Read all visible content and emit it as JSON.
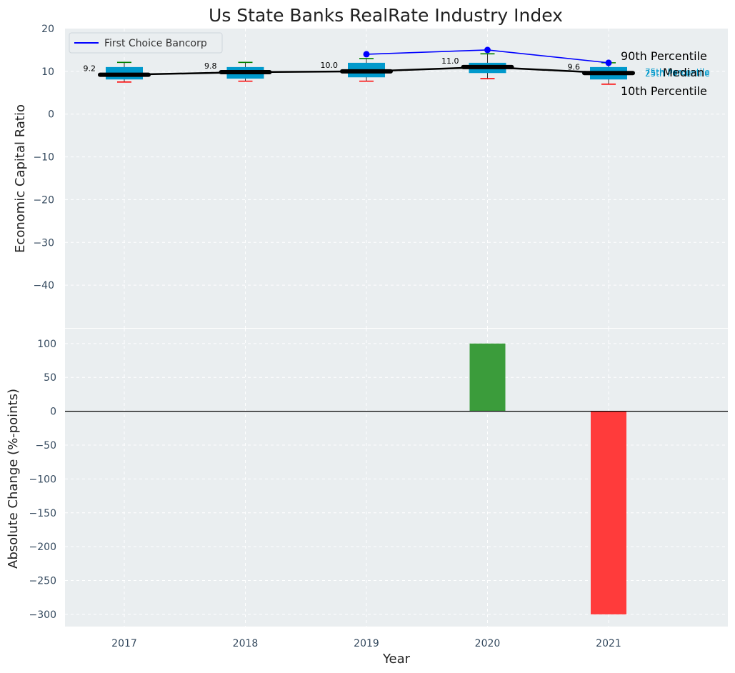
{
  "chart_data": [
    {
      "type": "box",
      "title": "Us State Banks RealRate Industry Index",
      "ylabel": "Economic Capital Ratio",
      "ylim": [
        -50,
        20
      ],
      "yticks": [
        20,
        10,
        0,
        -10,
        -20,
        -30,
        -40
      ],
      "grid": true,
      "categories": [
        "2017",
        "2018",
        "2019",
        "2020",
        "2021"
      ],
      "percentiles": {
        "p10": [
          7.5,
          7.7,
          7.7,
          8.3,
          7.0
        ],
        "p25": [
          8.1,
          8.3,
          8.6,
          9.6,
          8.1
        ],
        "median": [
          9.2,
          9.8,
          10.0,
          11.0,
          9.6
        ],
        "p75": [
          11.0,
          11.0,
          12.0,
          12.0,
          11.0
        ],
        "p90": [
          12.1,
          12.1,
          13.0,
          14.1,
          12.0
        ]
      },
      "median_labels": [
        "9.2",
        "9.8",
        "10.0",
        "11.0",
        "9.6"
      ],
      "series": [
        {
          "name": "First Choice Bancorp",
          "x": [
            "2019",
            "2020",
            "2021"
          ],
          "values": [
            14.0,
            15.0,
            12.0
          ],
          "color": "#0000ff"
        }
      ],
      "legend": {
        "position": "top-left",
        "entries": [
          "First Choice Bancorp"
        ]
      },
      "annotations": {
        "p90": "90th Percentile",
        "p75": "75th Percentile",
        "median": "Median",
        "p25": "25th Percentile",
        "p10": "10th Percentile"
      }
    },
    {
      "type": "bar",
      "ylabel": "Absolute Change (%-points)",
      "xlabel": "Year",
      "ylim": [
        -318,
        122
      ],
      "yticks": [
        100,
        50,
        0,
        -50,
        -100,
        -150,
        -200,
        -250,
        -300
      ],
      "grid": true,
      "categories": [
        "2017",
        "2018",
        "2019",
        "2020",
        "2021"
      ],
      "values": [
        null,
        null,
        null,
        100,
        -300
      ]
    }
  ],
  "colors": {
    "background": "#eaeef0",
    "box": "#0099cc",
    "median_line": "#000000",
    "p90_whisker": "#008000",
    "p10_whisker": "#ff0000",
    "positive_bar": "#3b9c3b",
    "negative_bar": "#ff3b3b",
    "text": "#222222",
    "tick_text": "#34495e"
  }
}
